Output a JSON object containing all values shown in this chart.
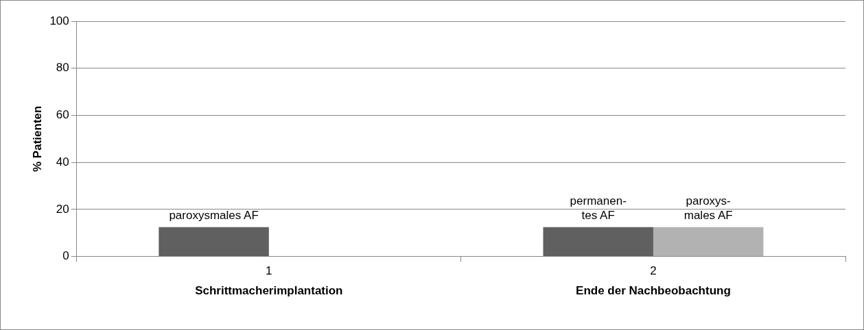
{
  "chart_data": {
    "type": "bar",
    "ylabel": "% Patienten",
    "categories": [
      "1",
      "2"
    ],
    "series": [
      {
        "color": "#606060",
        "values": [
          12.5,
          12.5
        ]
      },
      {
        "color": "#b2b2b2",
        "values": [
          0,
          12.5
        ]
      }
    ],
    "ylim": [
      0,
      100
    ],
    "yticks": [
      0,
      20,
      40,
      60,
      80,
      100
    ],
    "grid": "y",
    "legend": false,
    "annotations": [
      {
        "text": "paroxysmales AF",
        "x": "1",
        "y": 12.5
      },
      {
        "text": "permanen-\ntes AF",
        "x": "2",
        "y": 12.5
      },
      {
        "text": "paroxys-\nmales AF",
        "x": "2",
        "y": 12.5
      },
      "Schrittmacherimplantation",
      "Ende der Nachbeobachtung"
    ]
  }
}
